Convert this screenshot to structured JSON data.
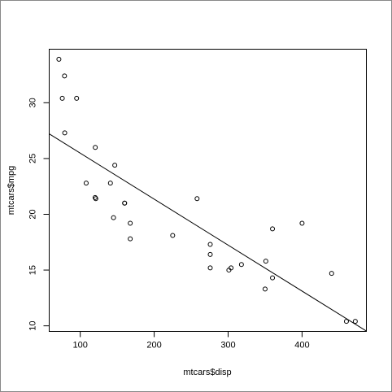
{
  "chart_data": {
    "type": "scatter",
    "x_label": "mtcars$disp",
    "y_label": "mtcars$mpg",
    "x": [
      160,
      160,
      108,
      258,
      360,
      225,
      360,
      146.7,
      140.8,
      167.6,
      167.6,
      275.8,
      275.8,
      275.8,
      472,
      460,
      440,
      78.7,
      75.7,
      71.1,
      120.1,
      318,
      304,
      350,
      400,
      79,
      120.3,
      95.1,
      351,
      145,
      301,
      121
    ],
    "values": [
      21.0,
      21.0,
      22.8,
      21.4,
      18.7,
      18.1,
      14.3,
      24.4,
      22.8,
      19.2,
      17.8,
      16.4,
      17.3,
      15.2,
      10.4,
      10.4,
      14.7,
      32.4,
      30.4,
      33.9,
      21.5,
      15.5,
      15.2,
      13.3,
      19.2,
      27.3,
      26.0,
      30.4,
      15.8,
      19.7,
      15.0,
      21.4
    ],
    "color": "#000000",
    "fit_line": {
      "x": [
        58,
        487
      ],
      "values": [
        27.21,
        9.53
      ],
      "color": "#000000"
    },
    "xlim": [
      58,
      487
    ],
    "ylim": [
      9.5,
      34.8
    ],
    "xticks": [
      100,
      200,
      300,
      400
    ],
    "yticks": [
      10,
      15,
      20,
      25,
      30
    ]
  }
}
